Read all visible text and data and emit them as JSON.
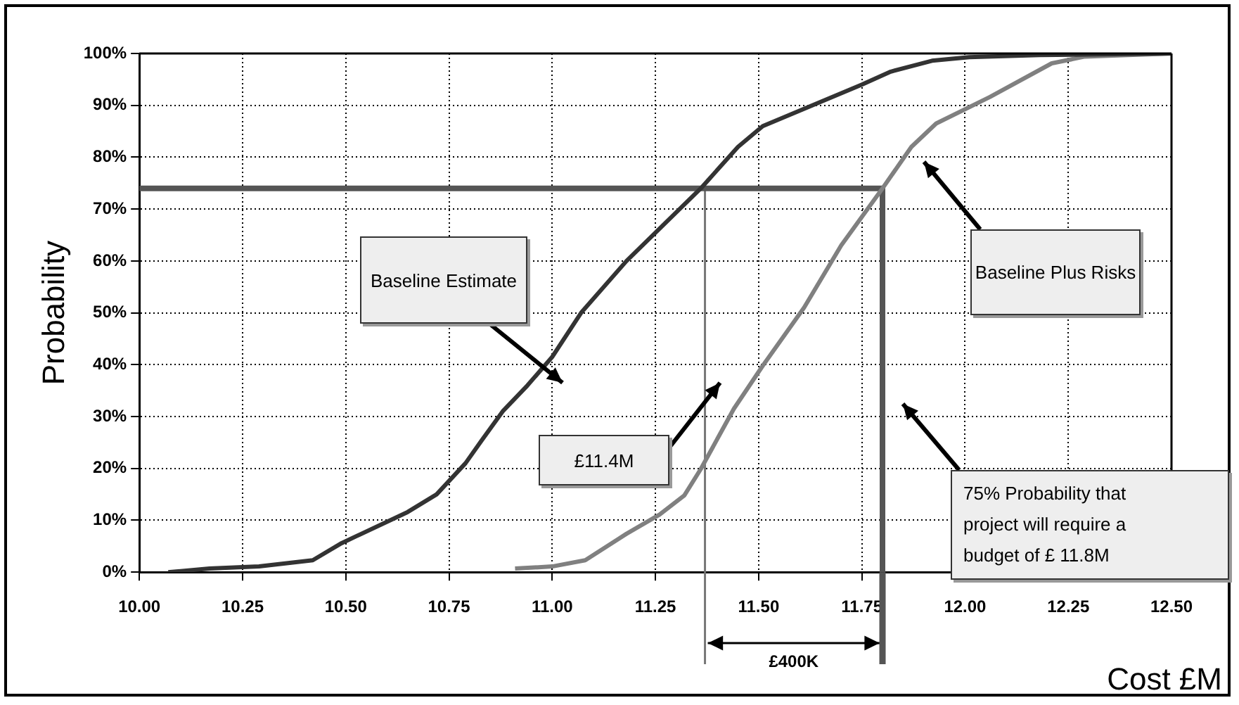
{
  "chart_data": {
    "type": "line",
    "xlabel": "Cost £M",
    "ylabel": "Probability",
    "xlim": [
      10,
      12.5
    ],
    "ylim": [
      0,
      100
    ],
    "xticks": [
      {
        "value": 10,
        "label": "10.00"
      },
      {
        "value": 10.25,
        "label": "10.25"
      },
      {
        "value": 10.5,
        "label": "10.50"
      },
      {
        "value": 10.75,
        "label": "10.75"
      },
      {
        "value": 11,
        "label": "11.00"
      },
      {
        "value": 11.25,
        "label": "11.25"
      },
      {
        "value": 11.5,
        "label": "11.50"
      },
      {
        "value": 11.75,
        "label": "11.75"
      },
      {
        "value": 12,
        "label": "12.00"
      },
      {
        "value": 12.25,
        "label": "12.25"
      },
      {
        "value": 12.5,
        "label": "12.50"
      }
    ],
    "yticks": [
      {
        "value": 0,
        "label": "0%"
      },
      {
        "value": 10,
        "label": "10%"
      },
      {
        "value": 20,
        "label": "20%"
      },
      {
        "value": 30,
        "label": "30%"
      },
      {
        "value": 40,
        "label": "40%"
      },
      {
        "value": 50,
        "label": "50%"
      },
      {
        "value": 60,
        "label": "60%"
      },
      {
        "value": 70,
        "label": "70%"
      },
      {
        "value": 80,
        "label": "80%"
      },
      {
        "value": 90,
        "label": "90%"
      },
      {
        "value": 100,
        "label": "100%"
      }
    ],
    "grid": true,
    "marker": "none",
    "line_style": "solid",
    "annotations": [
      "Baseline Estimate",
      "Baseline Plus Risks",
      "£11.4M",
      "75% Probability that project will require a budget of £ 11.8M",
      "£400K"
    ],
    "series": [
      {
        "color": "#333333",
        "x": [
          10.07,
          10.17,
          10.29,
          10.42,
          10.49,
          10.65,
          10.72,
          10.79,
          10.83,
          10.88,
          10.94,
          11.0,
          11.07,
          11.18,
          11.36,
          11.45,
          11.51,
          11.63,
          11.75,
          11.82,
          11.92,
          12.01,
          12.18,
          12.5
        ],
        "values": [
          0,
          0.7,
          1.1,
          2.3,
          5.6,
          11.6,
          15,
          21,
          25.5,
          31,
          36,
          41.5,
          50,
          60,
          74,
          82,
          86,
          90,
          94,
          96.5,
          98.6,
          99.3,
          99.7,
          100
        ]
      },
      {
        "color": "#808080",
        "x": [
          10.91,
          11.0,
          11.08,
          11.18,
          11.26,
          11.32,
          11.36,
          11.44,
          11.51,
          11.61,
          11.7,
          11.8,
          11.87,
          11.93,
          12.06,
          12.21,
          12.29,
          12.5
        ],
        "values": [
          0.7,
          1.1,
          2.3,
          7.4,
          11.1,
          14.8,
          19.9,
          31.5,
          39.8,
          51,
          63,
          74,
          82,
          86.5,
          91.6,
          98.1,
          99.4,
          100
        ]
      },
      {
        "color": "#555555",
        "x": [
          10,
          11.8,
          11.8
        ],
        "values": [
          74,
          74,
          0
        ]
      },
      {
        "color": "#777777",
        "x": [
          11.37,
          11.37
        ],
        "values": [
          74,
          0
        ]
      }
    ]
  }
}
